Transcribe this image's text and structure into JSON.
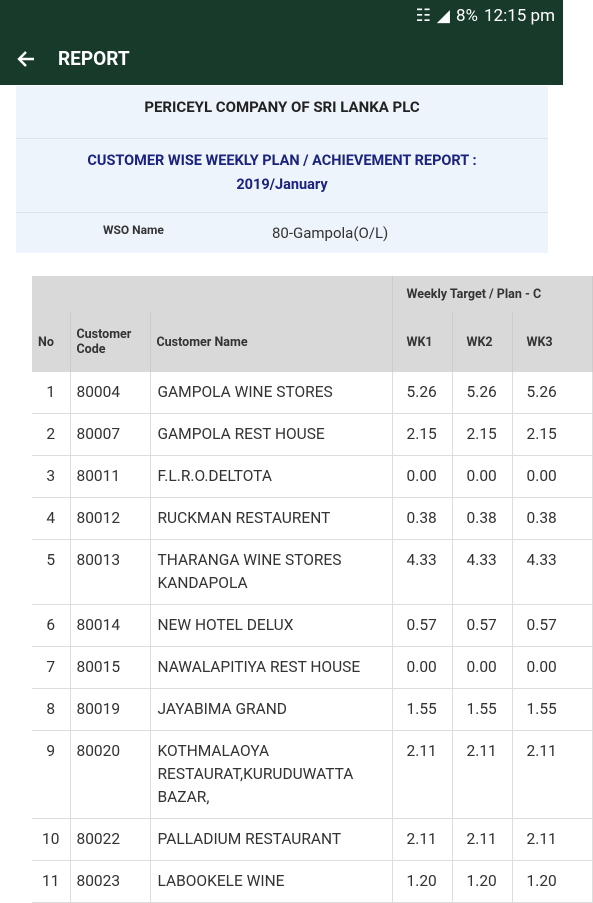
{
  "status_bar": {
    "battery": "8%",
    "time": "12:15 pm"
  },
  "app_bar": {
    "title": "REPORT"
  },
  "header": {
    "company": "PERICEYL COMPANY OF SRI LANKA PLC",
    "report_title": "CUSTOMER WISE WEEKLY PLAN / ACHIEVEMENT REPORT : 2019/January",
    "wso_label": "WSO Name",
    "wso_value": "80-Gampola(O/L)"
  },
  "table": {
    "group_header": "Weekly Target / Plan - C",
    "columns": [
      "No",
      "Customer Code",
      "Customer Name",
      "WK1",
      "WK2",
      "WK3"
    ],
    "rows": [
      [
        "1",
        "80004",
        "GAMPOLA WINE STORES",
        "5.26",
        "5.26",
        "5.26"
      ],
      [
        "2",
        "80007",
        "GAMPOLA REST HOUSE",
        "2.15",
        "2.15",
        "2.15"
      ],
      [
        "3",
        "80011",
        "F.L.R.O.DELTOTA",
        "0.00",
        "0.00",
        "0.00"
      ],
      [
        "4",
        "80012",
        "RUCKMAN RESTAURENT",
        "0.38",
        "0.38",
        "0.38"
      ],
      [
        "5",
        "80013",
        "THARANGA WINE STORES KANDAPOLA",
        "4.33",
        "4.33",
        "4.33"
      ],
      [
        "6",
        "80014",
        "NEW HOTEL DELUX",
        "0.57",
        "0.57",
        "0.57"
      ],
      [
        "7",
        "80015",
        "NAWALAPITIYA REST HOUSE",
        "0.00",
        "0.00",
        "0.00"
      ],
      [
        "8",
        "80019",
        "JAYABIMA GRAND",
        "1.55",
        "1.55",
        "1.55"
      ],
      [
        "9",
        "80020",
        "KOTHMALAOYA RESTAURAT,KURUDUWATTA BAZAR,",
        "2.11",
        "2.11",
        "2.11"
      ],
      [
        "10",
        "80022",
        "PALLADIUM RESTAURANT",
        "2.11",
        "2.11",
        "2.11"
      ],
      [
        "11",
        "80023",
        "LABOOKELE WINE",
        "1.20",
        "1.20",
        "1.20"
      ]
    ]
  }
}
